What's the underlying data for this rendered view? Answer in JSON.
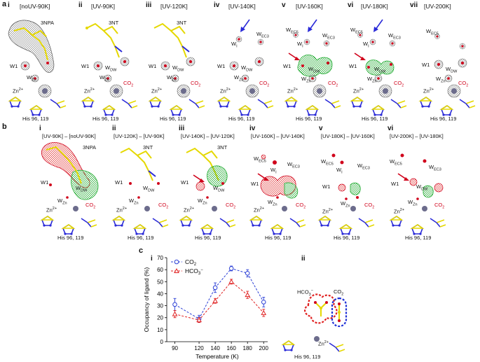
{
  "panel_labels": {
    "a": "a",
    "b": "b",
    "c": "c"
  },
  "row_a": [
    {
      "roman": "i",
      "title": "[noUV-90K]",
      "ligand": "3NPA"
    },
    {
      "roman": "ii",
      "title": "[UV-90K]",
      "ligand": "3NT"
    },
    {
      "roman": "iii",
      "title": "[UV-120K]",
      "ligand": "3NT"
    },
    {
      "roman": "iv",
      "title": "[UV-140K]",
      "ligand": ""
    },
    {
      "roman": "v",
      "title": "[UV-160K]",
      "ligand": ""
    },
    {
      "roman": "vi",
      "title": "[UV-180K]",
      "ligand": ""
    },
    {
      "roman": "vii",
      "title": "[UV-200K]",
      "ligand": ""
    }
  ],
  "row_b": [
    {
      "roman": "i",
      "title": "[UV-90K] – [noUV-90K]",
      "ligand": "3NPA"
    },
    {
      "roman": "ii",
      "title": "[UV-120K] – [UV-90K]",
      "ligand": "3NT"
    },
    {
      "roman": "iii",
      "title": "[UV-140K] – [UV-120K]",
      "ligand": "3NT"
    },
    {
      "roman": "iv",
      "title": "[UV-160K] – [UV-140K]",
      "ligand": ""
    },
    {
      "roman": "v",
      "title": "[UV-180K] – [UV-160K]",
      "ligand": ""
    },
    {
      "roman": "vi",
      "title": "[UV-200K] – [UV-180K]",
      "ligand": ""
    }
  ],
  "labels": {
    "w1": "W1",
    "w_base": "W",
    "dw_sub": "DW",
    "zn_sub": "Zn",
    "ec3_sub": "EC3",
    "ec5_sub": "EC5",
    "i_sub": "I",
    "zn_ion": "Zn",
    "zn_charge": "2+",
    "co2": "CO",
    "co2_sub": "2",
    "his": "His 96, 119",
    "hco3": "HCO",
    "hco3_sub": "3",
    "hco3_sup": "−"
  },
  "panel_c": {
    "roman_i": "i",
    "roman_ii": "ii"
  },
  "colors": {
    "co2_series": "#2b3fd6",
    "hco3_series": "#e02020",
    "red_density": "#d0021b",
    "green_density": "#1faa2f",
    "ligand": "#e5d800",
    "zn": "#6c6c8c"
  },
  "chart_data": {
    "type": "line",
    "xlabel": "Temperature (K)",
    "ylabel": "Occupancy of ligand (%)",
    "x": [
      90,
      120,
      140,
      160,
      180,
      200
    ],
    "xticks": [
      90,
      120,
      140,
      160,
      180,
      200
    ],
    "ylim": [
      0,
      70
    ],
    "yticks": [
      0,
      10,
      20,
      30,
      40,
      50,
      60,
      70
    ],
    "legend_position": "top-left",
    "series": [
      {
        "name": "CO",
        "name_sub": "2",
        "name_sup": "",
        "marker": "circle",
        "color": "#2b3fd6",
        "values": [
          31,
          19,
          45,
          61,
          57,
          33
        ],
        "errors": [
          5,
          3,
          4,
          2,
          3,
          4
        ]
      },
      {
        "name": "HCO",
        "name_sub": "3",
        "name_sup": "−",
        "marker": "triangle",
        "color": "#e02020",
        "values": [
          23,
          18,
          34,
          50,
          39,
          24
        ],
        "errors": [
          3,
          2,
          2,
          2,
          3,
          3
        ]
      }
    ]
  }
}
